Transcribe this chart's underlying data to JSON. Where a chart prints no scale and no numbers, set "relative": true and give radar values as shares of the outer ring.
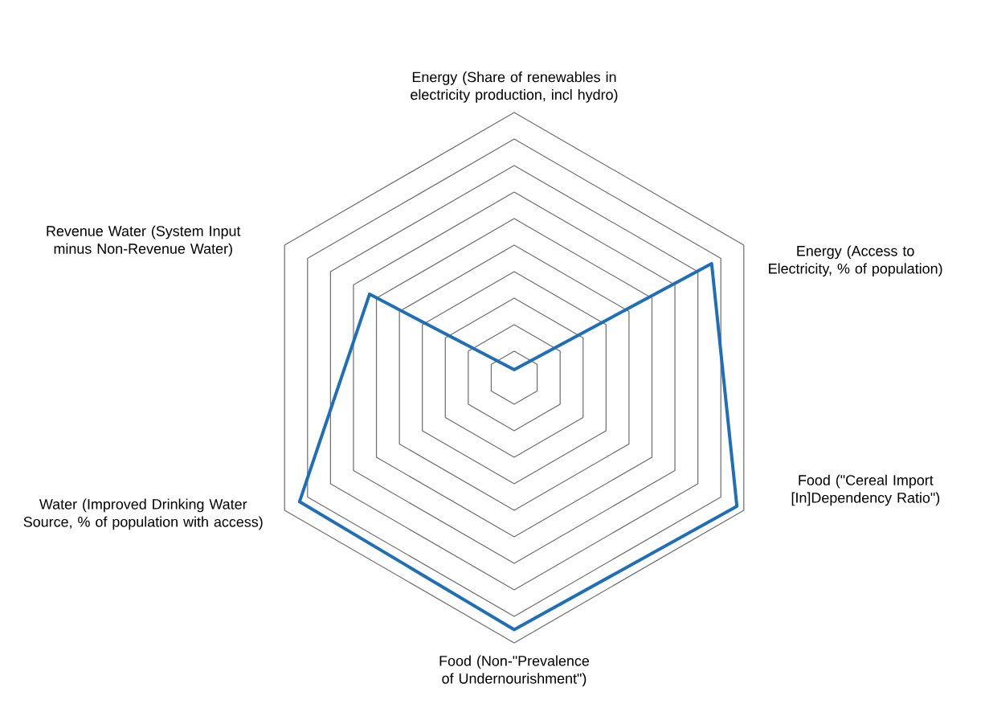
{
  "chart_data": {
    "type": "radar",
    "relative": true,
    "categories": [
      "Energy (Share of renewables in electricity production, incl hydro)",
      "Energy (Access to Electricity, % of population)",
      "Food (\"Cereal Import [In]Dependency Ratio\")",
      "Food (Non-\"Prevalence of Undernourishment\")",
      "Water (Improved Drinking Water Source, % of population with access)",
      "Revenue Water (System Input minus Non-Revenue Water)"
    ],
    "series": [
      {
        "color": "#1f6fb8",
        "values": [
          0.03,
          0.86,
          0.97,
          0.95,
          0.935,
          0.63
        ]
      }
    ],
    "grid": true,
    "legend": false,
    "marker": "none",
    "line_style": "solid"
  }
}
